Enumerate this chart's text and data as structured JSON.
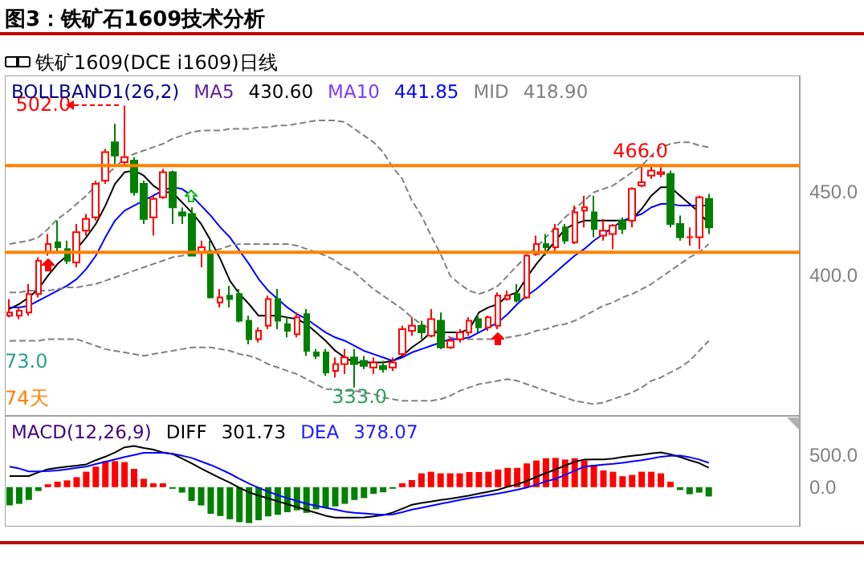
{
  "chart_data": [
    {
      "type": "candlestick",
      "title": "图3：铁矿石1609技术分析",
      "subtitle": "铁矿1609(DCE i1609)日线",
      "categories": [
        null,
        null,
        null,
        null,
        null,
        null,
        null,
        null,
        null,
        null,
        null,
        null,
        null,
        null,
        null,
        null,
        null,
        null,
        null,
        null,
        null,
        null,
        null,
        null,
        null,
        null,
        null,
        null,
        null,
        null,
        null,
        null,
        null,
        null,
        null,
        null,
        null,
        null,
        null,
        null,
        null,
        null,
        null,
        null,
        null,
        null,
        null,
        null,
        null,
        null,
        null,
        null,
        null,
        null,
        null,
        null,
        null,
        null,
        null,
        null,
        null,
        null,
        null,
        null,
        null,
        null,
        null,
        null,
        null,
        null,
        null,
        null,
        null,
        null
      ],
      "ohlc": [
        [
          376,
          386,
          375,
          378
        ],
        [
          376,
          381,
          374,
          379
        ],
        [
          378,
          395,
          376,
          389
        ],
        [
          389,
          411,
          387,
          409
        ],
        [
          414,
          425,
          412,
          419
        ],
        [
          420,
          433,
          414,
          417
        ],
        [
          416,
          421,
          407,
          409
        ],
        [
          408,
          431,
          405,
          426
        ],
        [
          427,
          437,
          424,
          434
        ],
        [
          435,
          457,
          433,
          455
        ],
        [
          457,
          476,
          455,
          474
        ],
        [
          480,
          491,
          467,
          472
        ],
        [
          468,
          502,
          466,
          471
        ],
        [
          469,
          471,
          448,
          450
        ],
        [
          455,
          457,
          431,
          434
        ],
        [
          435,
          448,
          424,
          446
        ],
        [
          447,
          464,
          446,
          462
        ],
        [
          462,
          463,
          431,
          441
        ],
        [
          438,
          441,
          431,
          436
        ],
        [
          437,
          441,
          412,
          412
        ],
        [
          414,
          421,
          405,
          417
        ],
        [
          414,
          421,
          387,
          387
        ],
        [
          384,
          392,
          381,
          387
        ],
        [
          388,
          394,
          381,
          386
        ],
        [
          389,
          392,
          372,
          373
        ],
        [
          373,
          376,
          359,
          362
        ],
        [
          362,
          369,
          360,
          367
        ],
        [
          370,
          388,
          368,
          386
        ],
        [
          386,
          392,
          368,
          373
        ],
        [
          371,
          375,
          363,
          367
        ],
        [
          365,
          378,
          363,
          375
        ],
        [
          377,
          380,
          352,
          355
        ],
        [
          354,
          356,
          350,
          352
        ],
        [
          354,
          356,
          340,
          342
        ],
        [
          343,
          351,
          339,
          347
        ],
        [
          347,
          356,
          341,
          351
        ],
        [
          351,
          356,
          333,
          347
        ],
        [
          349,
          352,
          344,
          346
        ],
        [
          345,
          351,
          341,
          348
        ],
        [
          346,
          349,
          342,
          344
        ],
        [
          345,
          351,
          343,
          348
        ],
        [
          353,
          370,
          352,
          368
        ],
        [
          367,
          375,
          364,
          370
        ],
        [
          370,
          373,
          362,
          366
        ],
        [
          364,
          380,
          363,
          374
        ],
        [
          373,
          378,
          356,
          357
        ],
        [
          357,
          363,
          356,
          361
        ],
        [
          362,
          368,
          360,
          366
        ],
        [
          366,
          375,
          364,
          373
        ],
        [
          374,
          377,
          366,
          369
        ],
        [
          369,
          376,
          367,
          375
        ],
        [
          370,
          390,
          368,
          388
        ],
        [
          386,
          391,
          385,
          388
        ],
        [
          389,
          395,
          384,
          385
        ],
        [
          387,
          413,
          386,
          412
        ],
        [
          413,
          424,
          412,
          419
        ],
        [
          419,
          425,
          412,
          417
        ],
        [
          417,
          431,
          415,
          428
        ],
        [
          429,
          431,
          419,
          421
        ],
        [
          420,
          442,
          419,
          438
        ],
        [
          439,
          448,
          429,
          441
        ],
        [
          438,
          448,
          423,
          428
        ],
        [
          424,
          434,
          421,
          427
        ],
        [
          425,
          431,
          416,
          430
        ],
        [
          433,
          435,
          425,
          428
        ],
        [
          433,
          453,
          429,
          452
        ],
        [
          454,
          466,
          453,
          456
        ],
        [
          460,
          466,
          458,
          463
        ],
        [
          461,
          465,
          459,
          462
        ],
        [
          461,
          463,
          429,
          431
        ],
        [
          431,
          436,
          421,
          423
        ],
        [
          423,
          429,
          418,
          423
        ],
        [
          423,
          448,
          416,
          447
        ],
        [
          446,
          449,
          425,
          429
        ]
      ],
      "series": [
        {
          "type": "line",
          "color": "#000000",
          "values": [
            380,
            383,
            387,
            392,
            400,
            407,
            412,
            416,
            423,
            431,
            442,
            455,
            462,
            463,
            460,
            454,
            450,
            450,
            444,
            438,
            431,
            421,
            410,
            397,
            389,
            383,
            376,
            376,
            376,
            375,
            374,
            371,
            366,
            361,
            355,
            351,
            348,
            348,
            348,
            348,
            349,
            352,
            357,
            361,
            366,
            366,
            366,
            366,
            368,
            378,
            381,
            383,
            388,
            390,
            399,
            407,
            414,
            421,
            428,
            431,
            433,
            433,
            433,
            433,
            433,
            434,
            440,
            448,
            453,
            453,
            448,
            443,
            438,
            431
          ]
        },
        {
          "type": "line",
          "color": "#0000ff",
          "values": [
            381,
            381,
            382,
            385,
            388,
            391,
            394,
            398,
            404,
            412,
            423,
            433,
            439,
            442,
            445,
            448,
            451,
            453,
            452,
            448,
            442,
            436,
            429,
            423,
            415,
            407,
            398,
            391,
            386,
            381,
            377,
            374,
            370,
            366,
            363,
            361,
            358,
            355,
            353,
            351,
            349,
            351,
            354,
            356,
            358,
            360,
            362,
            362,
            363,
            366,
            369,
            372,
            377,
            383,
            388,
            392,
            397,
            402,
            407,
            412,
            416,
            421,
            425,
            429,
            433,
            435,
            437,
            441,
            443,
            443,
            442,
            442,
            442,
            442
          ]
        },
        {
          "type": "line",
          "color": "#808080",
          "line_style": "dashed",
          "values": [
            419,
            420,
            421,
            423,
            428,
            434,
            438,
            443,
            448,
            454,
            460,
            465,
            470,
            473,
            475,
            477,
            479,
            482,
            484,
            486,
            487,
            487,
            487,
            488,
            488,
            488,
            489,
            489,
            490,
            490,
            491,
            492,
            493,
            493,
            493,
            492,
            488,
            484,
            480,
            474,
            465,
            458,
            445,
            436,
            424,
            413,
            400,
            395,
            391,
            389,
            391,
            394,
            400,
            406,
            412,
            417,
            423,
            429,
            435,
            440,
            445,
            450,
            452,
            454,
            458,
            462,
            466,
            472,
            477,
            479,
            480,
            480,
            478,
            477
          ]
        },
        {
          "type": "line",
          "color": "#808080",
          "line_style": "dashed",
          "values": [
            390,
            390,
            391,
            391,
            391,
            392,
            393,
            393,
            394,
            395,
            397,
            399,
            401,
            403,
            405,
            407,
            409,
            411,
            412,
            413,
            414,
            415,
            416,
            418,
            419,
            419,
            419,
            419,
            419,
            419,
            418,
            416,
            414,
            412,
            409,
            405,
            402,
            397,
            392,
            388,
            384,
            380,
            375,
            371,
            368,
            366,
            363,
            362,
            362,
            362,
            362,
            362,
            363,
            364,
            365,
            367,
            368,
            370,
            371,
            373,
            376,
            379,
            382,
            384,
            387,
            389,
            392,
            395,
            399,
            403,
            407,
            411,
            414,
            419
          ]
        },
        {
          "type": "line",
          "color": "#808080",
          "line_style": "dashed",
          "values": [
            361,
            361,
            361,
            361,
            362,
            362,
            362,
            362,
            360,
            358,
            356,
            355,
            354,
            353,
            352,
            353,
            354,
            355,
            356,
            357,
            357,
            357,
            356,
            355,
            353,
            352,
            350,
            347,
            345,
            343,
            341,
            338,
            335,
            332,
            332,
            331,
            331,
            330,
            329,
            327,
            326,
            325,
            325,
            325,
            325,
            326,
            328,
            331,
            333,
            335,
            336,
            337,
            338,
            337,
            335,
            333,
            331,
            329,
            327,
            325,
            324,
            323,
            324,
            326,
            328,
            330,
            333,
            337,
            339,
            342,
            345,
            349,
            355,
            361
          ]
        }
      ],
      "ylim": [
        316,
        520
      ],
      "yticks": [
        {
          "value": 450,
          "label": "450.0"
        },
        {
          "value": 400,
          "label": "400.0"
        }
      ],
      "tick_labels": "y",
      "ref_lines": [
        {
          "axis": "y",
          "value": 466,
          "color": "#ff8000"
        },
        {
          "axis": "y",
          "value": 414,
          "color": "#ff8000"
        }
      ],
      "annotations": [
        "BOLLBAND1(26,2)",
        "MA5",
        "430.60",
        "MA10",
        "441.85",
        "MID",
        "418.90",
        {
          "text": "466.0",
          "y": 466
        },
        {
          "text": "333.0",
          "y": 333
        },
        "502.0",
        "73.0",
        "74天"
      ]
    },
    {
      "type": "bar",
      "categories": [
        null,
        null,
        null,
        null,
        null,
        null,
        null,
        null,
        null,
        null,
        null,
        null,
        null,
        null,
        null,
        null,
        null,
        null,
        null,
        null,
        null,
        null,
        null,
        null,
        null,
        null,
        null,
        null,
        null,
        null,
        null,
        null,
        null,
        null,
        null,
        null,
        null,
        null,
        null,
        null,
        null,
        null,
        null,
        null,
        null,
        null,
        null,
        null,
        null,
        null,
        null,
        null,
        null,
        null,
        null,
        null,
        null,
        null,
        null,
        null,
        null,
        null,
        null,
        null,
        null,
        null,
        null,
        null,
        null,
        null,
        null,
        null,
        null,
        null
      ],
      "series": [
        {
          "type": "bar",
          "values": [
            -285,
            -260,
            -200,
            -60,
            45,
            85,
            105,
            155,
            240,
            320,
            405,
            405,
            390,
            285,
            130,
            60,
            60,
            -25,
            -85,
            -215,
            -285,
            -415,
            -450,
            -500,
            -545,
            -560,
            -515,
            -455,
            -430,
            -390,
            -360,
            -400,
            -345,
            -320,
            -300,
            -260,
            -200,
            -170,
            -105,
            -80,
            -25,
            60,
            110,
            215,
            240,
            215,
            215,
            215,
            235,
            235,
            240,
            275,
            300,
            300,
            370,
            415,
            450,
            455,
            430,
            450,
            415,
            345,
            260,
            240,
            170,
            190,
            240,
            240,
            215,
            85,
            -45,
            -110,
            -85,
            -145
          ],
          "colors": [
            "#008000",
            "#008000",
            "#008000",
            "#008000",
            "#ff0000",
            "#ff0000",
            "#ff0000",
            "#ff0000",
            "#ff0000",
            "#ff0000",
            "#ff0000",
            "#ff0000",
            "#ff0000",
            "#ff0000",
            "#ff0000",
            "#ff0000",
            "#ff0000",
            "#008000",
            "#008000",
            "#008000",
            "#008000",
            "#008000",
            "#008000",
            "#008000",
            "#008000",
            "#008000",
            "#008000",
            "#008000",
            "#008000",
            "#008000",
            "#008000",
            "#008000",
            "#008000",
            "#008000",
            "#008000",
            "#008000",
            "#008000",
            "#008000",
            "#008000",
            "#008000",
            "#008000",
            "#ff0000",
            "#ff0000",
            "#ff0000",
            "#ff0000",
            "#ff0000",
            "#ff0000",
            "#ff0000",
            "#ff0000",
            "#ff0000",
            "#ff0000",
            "#ff0000",
            "#ff0000",
            "#ff0000",
            "#ff0000",
            "#ff0000",
            "#ff0000",
            "#ff0000",
            "#ff0000",
            "#ff0000",
            "#ff0000",
            "#ff0000",
            "#ff0000",
            "#ff0000",
            "#ff0000",
            "#ff0000",
            "#ff0000",
            "#ff0000",
            "#ff0000",
            "#ff0000",
            "#008000",
            "#008000",
            "#008000",
            "#008000"
          ]
        },
        {
          "type": "line",
          "color": "#000000",
          "values": [
            172,
            172,
            172,
            230,
            280,
            302,
            320,
            335,
            355,
            420,
            475,
            540,
            620,
            640,
            610,
            585,
            540,
            517,
            445,
            370,
            290,
            215,
            140,
            70,
            -10,
            -80,
            -130,
            -175,
            -220,
            -265,
            -310,
            -355,
            -400,
            -445,
            -474,
            -474,
            -474,
            -470,
            -455,
            -435,
            -395,
            -335,
            -275,
            -245,
            -225,
            -200,
            -180,
            -155,
            -130,
            -100,
            -70,
            -40,
            5,
            45,
            95,
            160,
            220,
            275,
            335,
            395,
            430,
            431,
            431,
            445,
            470,
            488,
            505,
            525,
            540,
            510,
            470,
            420,
            375,
            302
          ]
        },
        {
          "type": "line",
          "color": "#0000ff",
          "values": [
            319,
            290,
            245,
            245,
            250,
            259,
            280,
            300,
            320,
            360,
            395,
            431,
            470,
            500,
            534,
            534,
            534,
            520,
            490,
            455,
            400,
            345,
            280,
            210,
            130,
            55,
            -10,
            -70,
            -125,
            -170,
            -215,
            -259,
            -290,
            -320,
            -350,
            -380,
            -400,
            -410,
            -420,
            -431,
            -425,
            -390,
            -350,
            -320,
            -290,
            -260,
            -230,
            -200,
            -172,
            -150,
            -125,
            -100,
            -70,
            -40,
            -5,
            40,
            90,
            129,
            190,
            255,
            319,
            335,
            350,
            362,
            380,
            400,
            420,
            445,
            474,
            487,
            491,
            465,
            430,
            378
          ]
        }
      ],
      "ylim": [
        -615,
        1110
      ],
      "yticks": [
        {
          "value": 500,
          "label": "500.0"
        },
        {
          "value": 0,
          "label": "0.0"
        }
      ],
      "tick_labels": "y",
      "annotations": [
        "MACD(12,26,9)",
        "DIFF",
        "301.73",
        "DEA",
        "378.07"
      ]
    }
  ]
}
